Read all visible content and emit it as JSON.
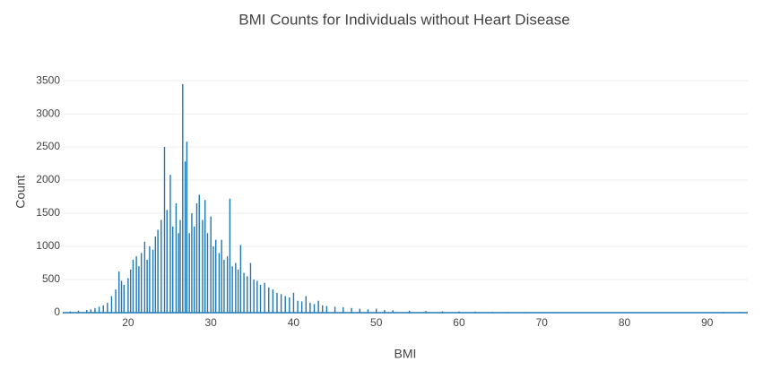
{
  "chart_data": {
    "type": "bar",
    "title": "BMI Counts for Individuals without Heart Disease",
    "x_label": "BMI",
    "y_label": "Count",
    "color": "#1f77b4",
    "x": [
      13,
      14,
      15,
      15.5,
      16,
      16.5,
      17,
      17.5,
      18,
      18.5,
      18.9,
      19.2,
      19.5,
      20,
      20.3,
      20.6,
      21,
      21.3,
      21.6,
      22,
      22.3,
      22.6,
      23,
      23.3,
      23.6,
      24,
      24.4,
      24.7,
      25.1,
      25.4,
      25.8,
      26.1,
      26.3,
      26.6,
      26.9,
      27.1,
      27.4,
      27.7,
      28,
      28.3,
      28.6,
      29,
      29.3,
      29.6,
      30,
      30.3,
      30.6,
      31,
      31.3,
      31.6,
      32,
      32.3,
      32.6,
      33,
      33.3,
      33.6,
      34,
      34.4,
      34.8,
      35.2,
      35.6,
      36,
      36.5,
      37,
      37.5,
      38,
      38.5,
      39,
      39.5,
      40,
      40.5,
      41,
      41.5,
      42,
      42.5,
      43,
      43.5,
      44,
      45,
      46,
      47,
      48,
      49,
      50,
      51,
      52,
      54,
      56,
      58,
      60,
      62,
      64,
      66,
      68,
      70,
      72,
      75,
      78,
      80,
      83,
      86,
      89,
      92,
      94
    ],
    "values": [
      20,
      30,
      40,
      50,
      70,
      90,
      110,
      150,
      250,
      350,
      620,
      480,
      420,
      520,
      650,
      800,
      850,
      700,
      900,
      1070,
      800,
      1000,
      950,
      1150,
      1250,
      1400,
      2500,
      1550,
      2080,
      1300,
      1650,
      1200,
      1400,
      3450,
      2280,
      2580,
      1200,
      1500,
      1300,
      1650,
      1780,
      1400,
      1700,
      1200,
      1450,
      1000,
      1100,
      900,
      1100,
      800,
      850,
      1720,
      700,
      750,
      650,
      1020,
      600,
      550,
      750,
      500,
      480,
      420,
      450,
      380,
      350,
      300,
      280,
      250,
      230,
      300,
      180,
      170,
      250,
      150,
      130,
      180,
      110,
      100,
      90,
      80,
      70,
      60,
      50,
      60,
      40,
      35,
      30,
      25,
      20,
      18,
      15,
      12,
      10,
      10,
      8,
      8,
      6,
      5,
      5,
      4,
      4,
      3,
      10,
      12
    ],
    "xlim": [
      12.1,
      94.9
    ],
    "ylim": [
      0,
      3650
    ],
    "xticks": [
      20,
      30,
      40,
      50,
      60,
      70,
      80,
      90
    ],
    "yticks": [
      0,
      500,
      1000,
      1500,
      2000,
      2500,
      3000,
      3500
    ],
    "grid": true
  }
}
